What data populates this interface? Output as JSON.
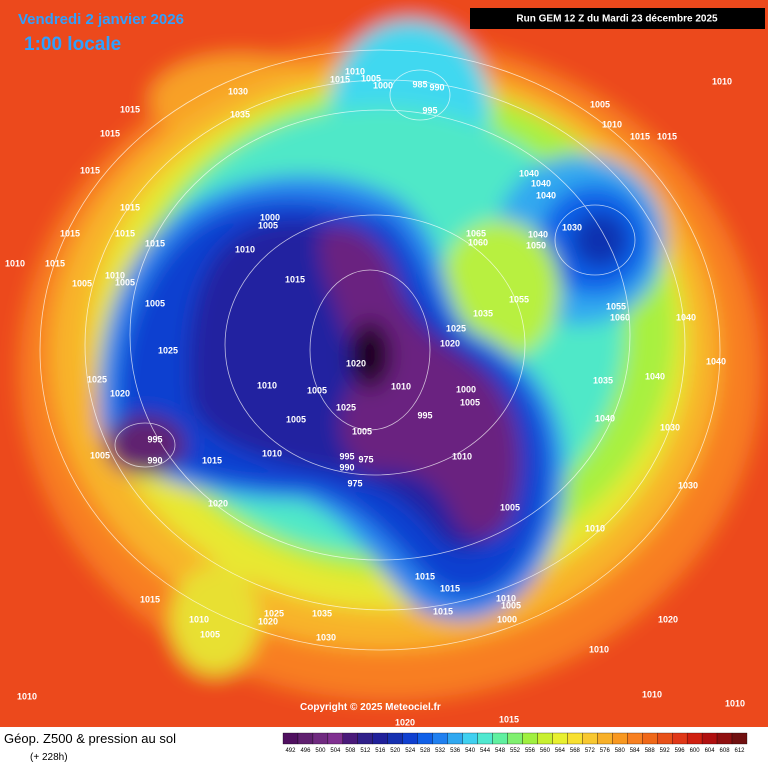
{
  "header": {
    "title": "Vendredi 2 janvier 2026",
    "time": "1:00 locale",
    "run": "Run GEM 12 Z du Mardi 23 décembre 2025"
  },
  "footer": {
    "product": "Géop. Z500 & pression au sol",
    "lead": "(+ 228h)",
    "copyright": "Copyright © 2025 Meteociel.fr"
  },
  "colorbar": {
    "ticks": [
      492,
      496,
      500,
      504,
      508,
      512,
      516,
      520,
      524,
      528,
      532,
      536,
      540,
      544,
      548,
      552,
      556,
      560,
      564,
      568,
      572,
      576,
      580,
      584,
      588,
      592,
      596,
      600,
      604,
      608,
      612
    ],
    "colors": [
      "#501060",
      "#602070",
      "#702a80",
      "#803090",
      "#4a1a7a",
      "#30208a",
      "#20209a",
      "#1530b0",
      "#1040d0",
      "#1060e8",
      "#2080f0",
      "#30a8f0",
      "#40d0f0",
      "#50e8d0",
      "#60f0a0",
      "#80f070",
      "#a0f040",
      "#c8f030",
      "#e8f030",
      "#f8e030",
      "#f8c830",
      "#f8b028",
      "#f89820",
      "#f88020",
      "#f06818",
      "#e85018",
      "#e03818",
      "#d02010",
      "#b01010",
      "#901010",
      "#701010"
    ]
  },
  "isobar_labels": [
    1030,
    1035,
    1015,
    1015,
    1015,
    1015,
    1015,
    1015,
    1015,
    1010,
    1015,
    1010,
    1005,
    1005,
    1005,
    1025,
    1025,
    1020,
    995,
    990,
    1005,
    1015,
    1020,
    1010,
    1015,
    1010,
    1005,
    1010,
    1020,
    1005,
    1025,
    1005,
    995,
    990,
    975,
    975,
    1010,
    995,
    1000,
    1005,
    1010,
    1005,
    1020,
    1025,
    1035,
    1055,
    1065,
    1060,
    1040,
    1040,
    1040,
    1030,
    1040,
    1050,
    1055,
    1060,
    1040,
    1040,
    1040,
    1035,
    1040,
    1030,
    1030,
    1010,
    1015,
    1015,
    1015,
    1010,
    1005,
    1000,
    1020,
    1010,
    1010,
    1010,
    1010,
    1005,
    1010,
    1015,
    1015,
    1010,
    1005,
    1015,
    1000,
    985,
    990,
    995,
    1000,
    1005,
    1015,
    1010,
    1005,
    1025,
    1020,
    1035,
    1030,
    1010,
    1020,
    1015
  ]
}
